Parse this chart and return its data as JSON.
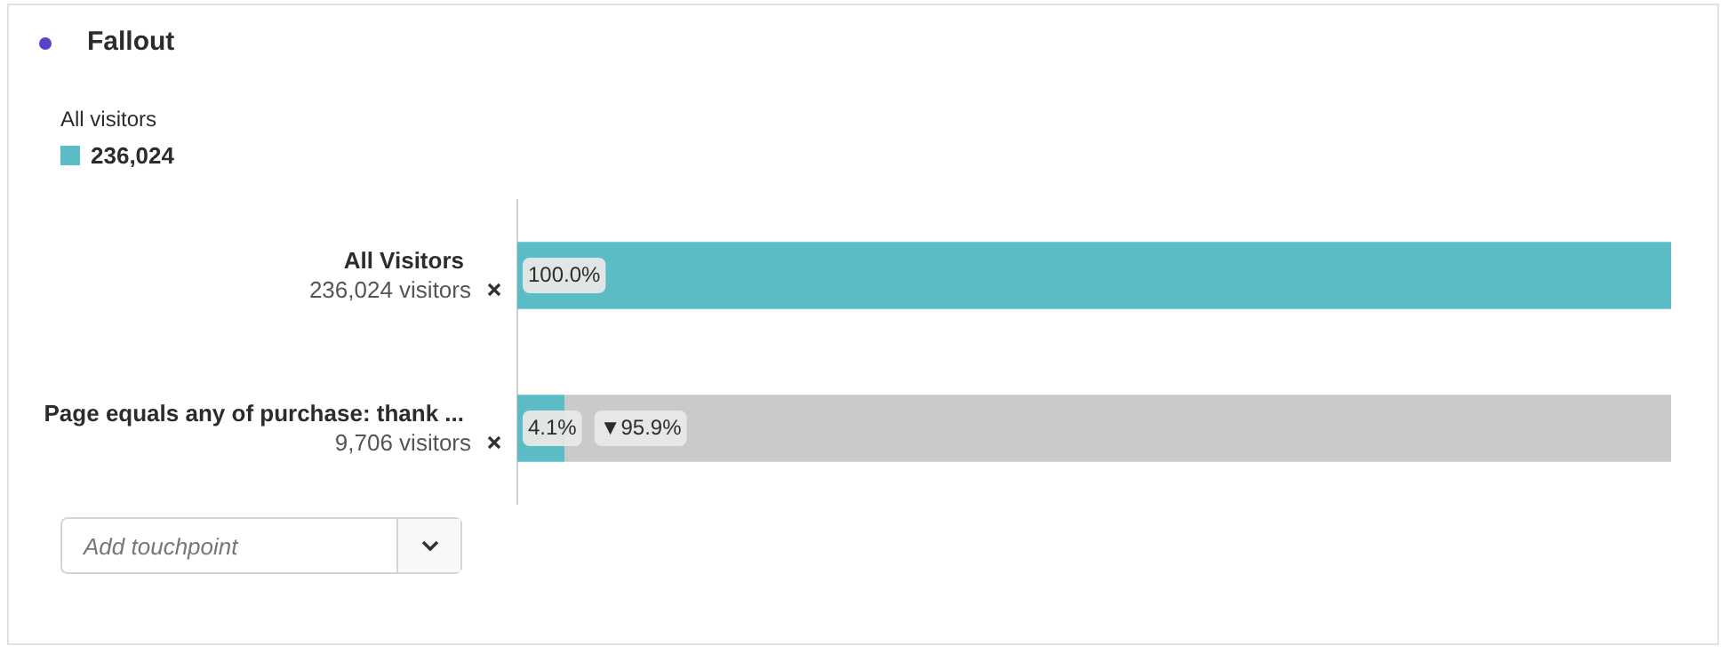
{
  "chart_data": {
    "type": "bar",
    "title": "Fallout",
    "orientation": "horizontal",
    "stacked": true,
    "grid": false,
    "legend": "top left",
    "legend_title": "All visitors",
    "categories": [
      "All Visitors",
      "Page equals any of purchase: thank ..."
    ],
    "series": [
      {
        "name": "236,024",
        "color": "#5bbcc6",
        "values": [
          100,
          4.1
        ],
        "value_labels": [
          "100.0%",
          "4.1%"
        ]
      },
      {
        "color": "#cacaca",
        "values": [
          null,
          95.9
        ],
        "value_labels": [
          null,
          "▼95.9%"
        ]
      }
    ],
    "annotations": [
      "236,024 visitors",
      "9,706 visitors",
      "Add touchpoint"
    ]
  }
}
